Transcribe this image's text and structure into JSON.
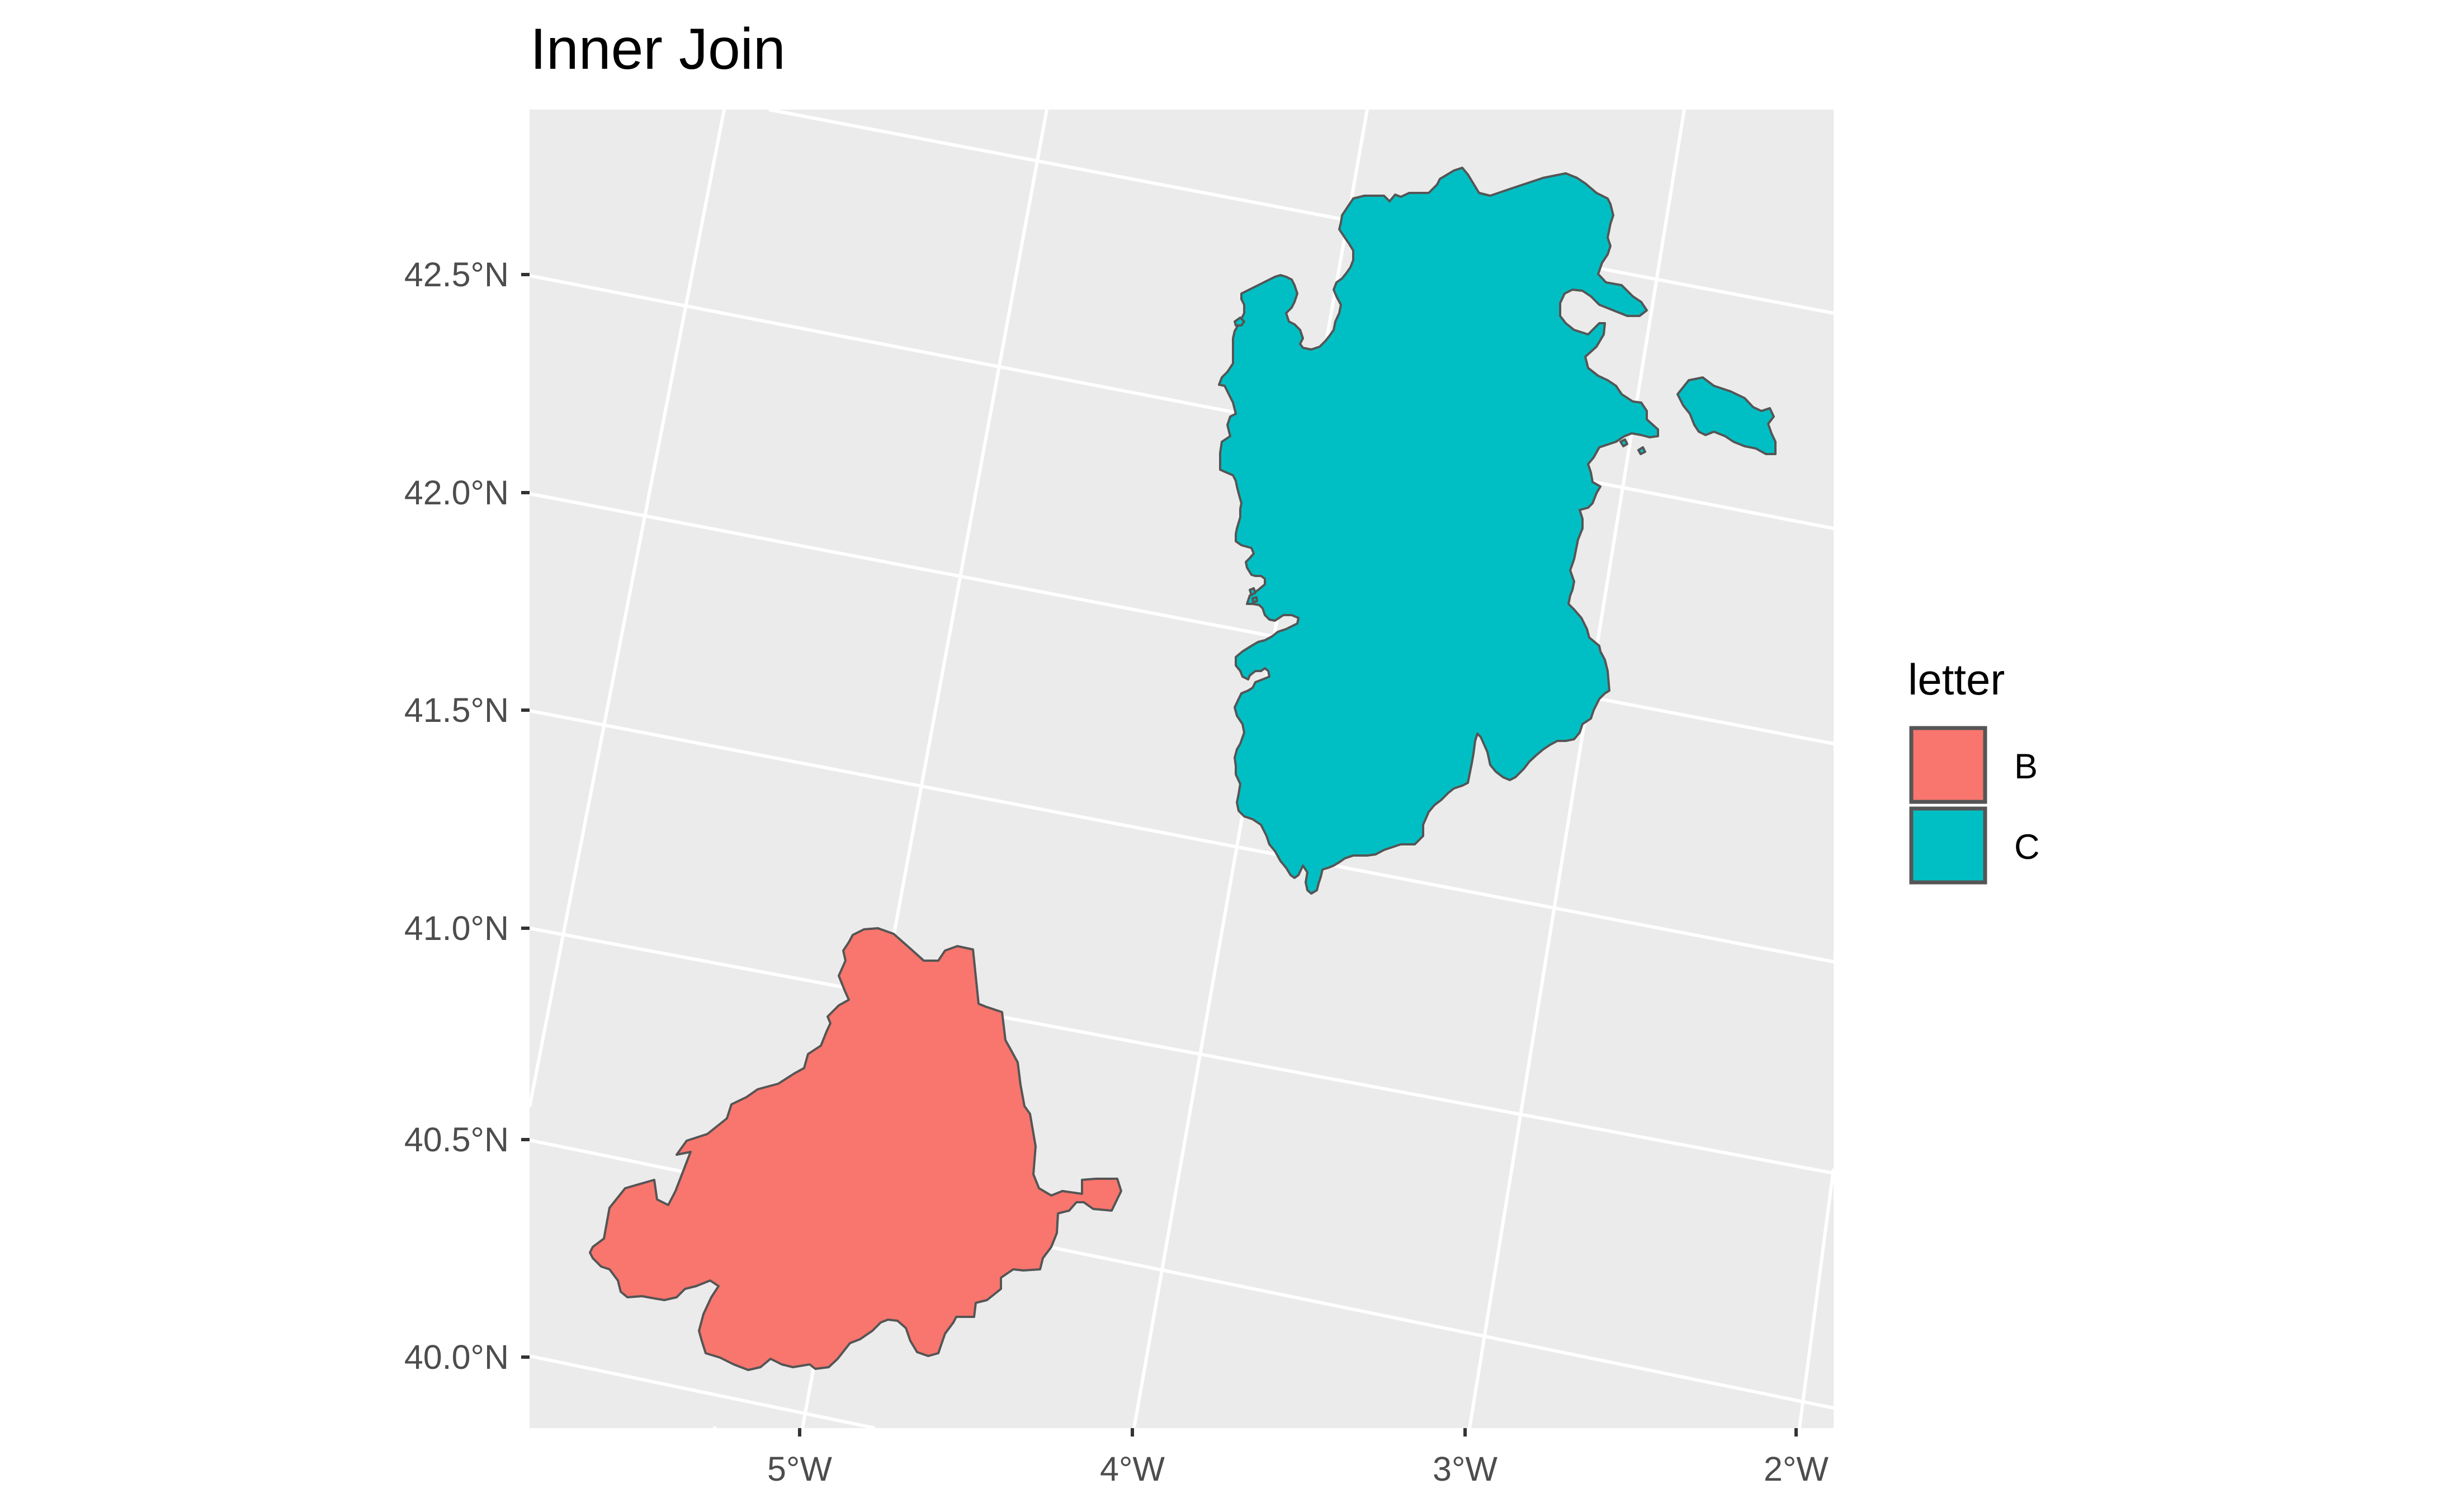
{
  "title": "Inner Join",
  "colors": {
    "panel_background": "#ebebeb",
    "gridline": "#ffffff",
    "region_outline": "#555555",
    "axis_text": "#4d4d4d"
  },
  "map": {
    "graticule": {
      "longitude_labels": [
        "5°W",
        "4°W",
        "3°W",
        "2°W"
      ],
      "latitude_labels": [
        "40.0°N",
        "40.5°N",
        "41.0°N",
        "41.5°N",
        "42.0°N",
        "42.5°N"
      ]
    },
    "regions": [
      {
        "letter": "B",
        "fill": "#f8766d"
      },
      {
        "letter": "C",
        "fill": "#00bfc4"
      }
    ]
  },
  "legend": {
    "title": "letter",
    "items": [
      {
        "label": "B",
        "fill": "#f8766d"
      },
      {
        "label": "C",
        "fill": "#00bfc4"
      }
    ]
  }
}
